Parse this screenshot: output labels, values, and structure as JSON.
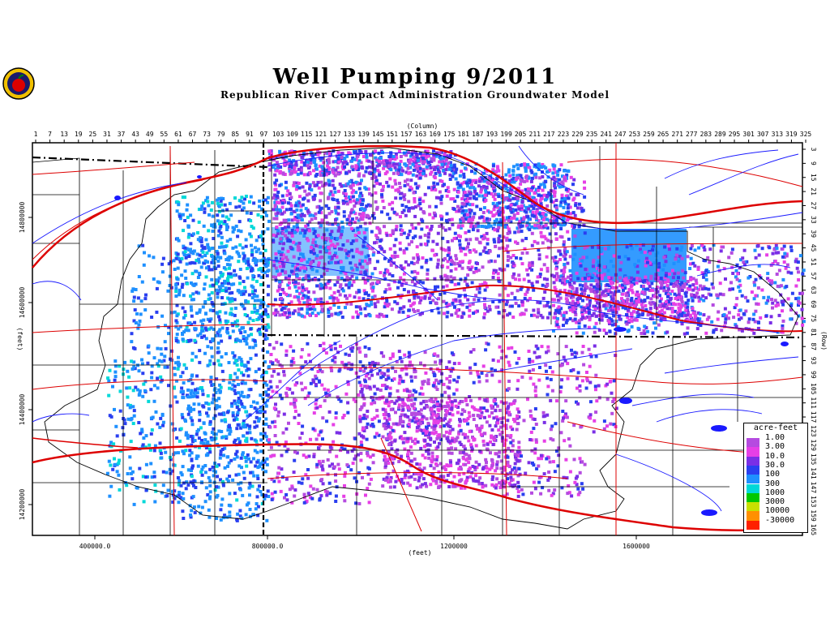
{
  "title": "Well Pumping 9/2011",
  "subtitle": "Republican River Compact Administration Groundwater Model",
  "axes": {
    "column_label": "(Column)",
    "row_label": "(Row)",
    "x_label": "(feet)",
    "y_label": "(feet)",
    "column_ticks": [
      "1",
      "7",
      "13",
      "19",
      "25",
      "31",
      "37",
      "43",
      "49",
      "55",
      "61",
      "67",
      "73",
      "79",
      "85",
      "91",
      "97",
      "103",
      "109",
      "115",
      "121",
      "127",
      "133",
      "139",
      "145",
      "151",
      "157",
      "163",
      "169",
      "175",
      "181",
      "187",
      "193",
      "199",
      "205",
      "211",
      "217",
      "223",
      "229",
      "235",
      "241",
      "247",
      "253",
      "259",
      "265",
      "271",
      "277",
      "283",
      "289",
      "295",
      "301",
      "307",
      "313",
      "319",
      "325"
    ],
    "row_ticks": [
      "3",
      "9",
      "15",
      "21",
      "27",
      "33",
      "39",
      "45",
      "51",
      "57",
      "63",
      "69",
      "75",
      "81",
      "87",
      "93",
      "99",
      "105",
      "111",
      "117",
      "123",
      "129",
      "135",
      "141",
      "147",
      "153",
      "159",
      "165"
    ],
    "x_ticks": [
      "400000.0",
      "800000.0",
      "1200000",
      "1600000"
    ],
    "y_ticks": [
      "14800000",
      "14600000",
      "14400000",
      "14200000"
    ]
  },
  "legend": {
    "title": "acre-feet",
    "items": [
      {
        "label": "1.00",
        "color": "#b54be0"
      },
      {
        "label": "3.00",
        "color": "#e63fe6"
      },
      {
        "label": "10.0",
        "color": "#7a2fe6"
      },
      {
        "label": "30.0",
        "color": "#2a3ff0"
      },
      {
        "label": "100",
        "color": "#1e90ff"
      },
      {
        "label": "300",
        "color": "#00d8d8"
      },
      {
        "label": "1000",
        "color": "#00c800"
      },
      {
        "label": "3000",
        "color": "#c8e000"
      },
      {
        "label": "10000",
        "color": "#ff9000"
      },
      {
        "label": "-30000",
        "color": "#ff2000"
      }
    ]
  },
  "colors": {
    "roads": "#dd0000",
    "rivers": "#1a1aff",
    "boundaries": "#000000",
    "pumping_high": "#1e90ff",
    "pumping_mid": "#2a3ff0",
    "pumping_low": "#e63fe6"
  },
  "logo_icon": "apple-seal-icon"
}
